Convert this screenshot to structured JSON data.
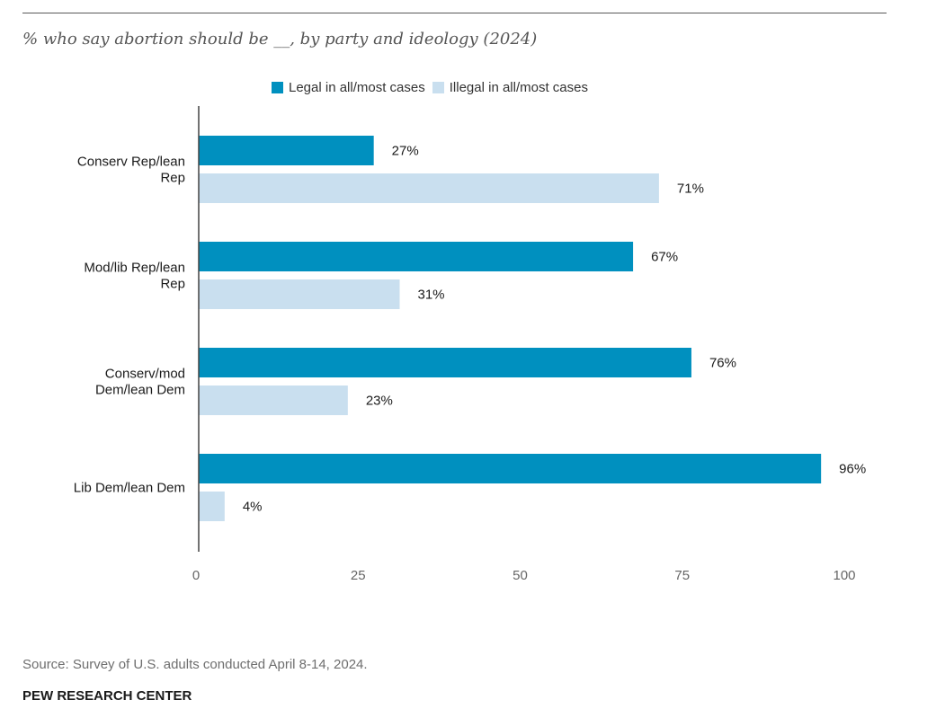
{
  "subtitle": "% who say abortion should be __, by party and ideology (2024)",
  "legend": {
    "legal": "Legal in all/most cases",
    "illegal": "Illegal in all/most cases"
  },
  "colors": {
    "legal": "#0090bf",
    "illegal": "#c9dfef",
    "axis": "#444444",
    "tick": "#666666",
    "text": "#1a1a1a"
  },
  "source": "Source: Survey of U.S. adults conducted April 8-14, 2024.",
  "org": "PEW RESEARCH CENTER",
  "chart_data": {
    "type": "bar",
    "orientation": "horizontal",
    "title": "% who say abortion should be __, by party and ideology (2024)",
    "categories": [
      [
        "Conserv Rep/lean",
        "Rep"
      ],
      [
        "Mod/lib Rep/lean",
        "Rep"
      ],
      [
        "Conserv/mod",
        "Dem/lean Dem"
      ],
      [
        "Lib Dem/lean Dem"
      ]
    ],
    "series": [
      {
        "key": "legal",
        "name": "Legal in all/most cases",
        "values": [
          27,
          67,
          76,
          96
        ],
        "labels": [
          "27%",
          "67%",
          "76%",
          "96%"
        ]
      },
      {
        "key": "illegal",
        "name": "Illegal in all/most cases",
        "values": [
          71,
          31,
          23,
          4
        ],
        "labels": [
          "71%",
          "31%",
          "23%",
          "4%"
        ]
      }
    ],
    "xlim": [
      0,
      100
    ],
    "xticks": [
      0,
      25,
      50,
      75,
      100
    ],
    "xlabel": "",
    "ylabel": "",
    "grid": false,
    "legend_position": "top"
  }
}
